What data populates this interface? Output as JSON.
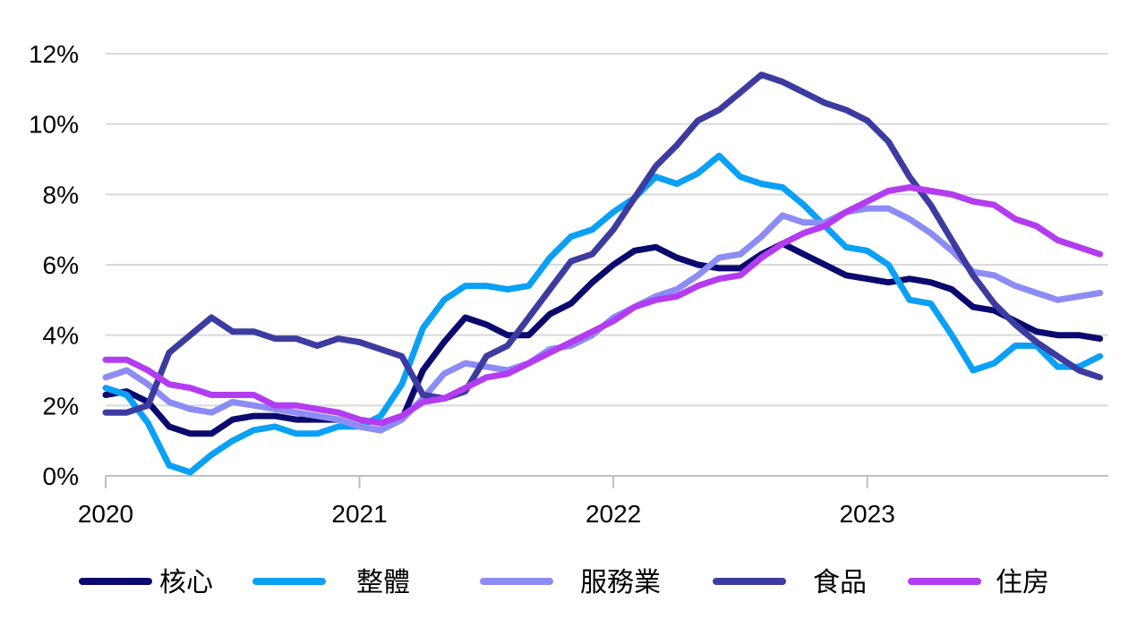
{
  "chart_data": {
    "type": "line",
    "title": "",
    "xlabel": "",
    "ylabel": "",
    "xlim": [
      2020.0,
      2023.95
    ],
    "ylim": [
      0,
      12
    ],
    "grid": true,
    "y_ticks": [
      0,
      2,
      4,
      6,
      8,
      10,
      12
    ],
    "y_tick_labels": [
      "0%",
      "2%",
      "4%",
      "6%",
      "8%",
      "10%",
      "12%"
    ],
    "x_ticks": [
      2020,
      2021,
      2022,
      2023
    ],
    "x_tick_labels": [
      "2020",
      "2021",
      "2022",
      "2023"
    ],
    "legend_position": "bottom",
    "x": [
      2020.0,
      2020.0833,
      2020.1667,
      2020.25,
      2020.3333,
      2020.4167,
      2020.5,
      2020.5833,
      2020.6667,
      2020.75,
      2020.8333,
      2020.9167,
      2021.0,
      2021.0833,
      2021.1667,
      2021.25,
      2021.3333,
      2021.4167,
      2021.5,
      2021.5833,
      2021.6667,
      2021.75,
      2021.8333,
      2021.9167,
      2022.0,
      2022.0833,
      2022.1667,
      2022.25,
      2022.3333,
      2022.4167,
      2022.5,
      2022.5833,
      2022.6667,
      2022.75,
      2022.8333,
      2022.9167,
      2023.0,
      2023.0833,
      2023.1667,
      2023.25,
      2023.3333,
      2023.4167,
      2023.5,
      2023.5833,
      2023.6667,
      2023.75,
      2023.8333,
      2023.9167
    ],
    "series": [
      {
        "name": "核心",
        "color": "#0a0a6e",
        "values": [
          2.3,
          2.4,
          2.1,
          1.4,
          1.2,
          1.2,
          1.6,
          1.7,
          1.7,
          1.6,
          1.6,
          1.6,
          1.4,
          1.3,
          1.6,
          3.0,
          3.8,
          4.5,
          4.3,
          4.0,
          4.0,
          4.6,
          4.9,
          5.5,
          6.0,
          6.4,
          6.5,
          6.2,
          6.0,
          5.9,
          5.9,
          6.3,
          6.6,
          6.3,
          6.0,
          5.7,
          5.6,
          5.5,
          5.6,
          5.5,
          5.3,
          4.8,
          4.7,
          4.4,
          4.1,
          4.0,
          4.0,
          3.9
        ]
      },
      {
        "name": "整體",
        "color": "#0aa0f5",
        "values": [
          2.5,
          2.3,
          1.5,
          0.3,
          0.1,
          0.6,
          1.0,
          1.3,
          1.4,
          1.2,
          1.2,
          1.4,
          1.4,
          1.7,
          2.6,
          4.2,
          5.0,
          5.4,
          5.4,
          5.3,
          5.4,
          6.2,
          6.8,
          7.0,
          7.5,
          7.9,
          8.5,
          8.3,
          8.6,
          9.1,
          8.5,
          8.3,
          8.2,
          7.7,
          7.1,
          6.5,
          6.4,
          6.0,
          5.0,
          4.9,
          4.0,
          3.0,
          3.2,
          3.7,
          3.7,
          3.1,
          3.1,
          3.4
        ]
      },
      {
        "name": "服務業",
        "color": "#8c8cf5",
        "values": [
          2.8,
          3.0,
          2.6,
          2.1,
          1.9,
          1.8,
          2.1,
          2.0,
          1.9,
          1.8,
          1.7,
          1.6,
          1.4,
          1.3,
          1.6,
          2.2,
          2.9,
          3.2,
          3.1,
          3.0,
          3.2,
          3.6,
          3.7,
          4.0,
          4.5,
          4.8,
          5.1,
          5.3,
          5.7,
          6.2,
          6.3,
          6.8,
          7.4,
          7.2,
          7.2,
          7.5,
          7.6,
          7.6,
          7.3,
          6.9,
          6.4,
          5.8,
          5.7,
          5.4,
          5.2,
          5.0,
          5.1,
          5.2
        ]
      },
      {
        "name": "食品",
        "color": "#3c3ca0",
        "values": [
          1.8,
          1.8,
          2.0,
          3.5,
          4.0,
          4.5,
          4.1,
          4.1,
          3.9,
          3.9,
          3.7,
          3.9,
          3.8,
          3.6,
          3.4,
          2.3,
          2.2,
          2.4,
          3.4,
          3.7,
          4.5,
          5.3,
          6.1,
          6.3,
          7.0,
          7.9,
          8.8,
          9.4,
          10.1,
          10.4,
          10.9,
          11.4,
          11.2,
          10.9,
          10.6,
          10.4,
          10.1,
          9.5,
          8.5,
          7.7,
          6.7,
          5.7,
          4.9,
          4.3,
          3.8,
          3.4,
          3.0,
          2.8
        ]
      },
      {
        "name": "住房",
        "color": "#b43cf0",
        "values": [
          3.3,
          3.3,
          3.0,
          2.6,
          2.5,
          2.3,
          2.3,
          2.3,
          2.0,
          2.0,
          1.9,
          1.8,
          1.6,
          1.5,
          1.7,
          2.1,
          2.2,
          2.5,
          2.8,
          2.9,
          3.2,
          3.5,
          3.8,
          4.1,
          4.4,
          4.8,
          5.0,
          5.1,
          5.4,
          5.6,
          5.7,
          6.2,
          6.6,
          6.9,
          7.1,
          7.5,
          7.8,
          8.1,
          8.2,
          8.1,
          8.0,
          7.8,
          7.7,
          7.3,
          7.1,
          6.7,
          6.5,
          6.3
        ]
      }
    ]
  },
  "legend": {
    "items": [
      {
        "label": "核心",
        "color": "#0a0a6e"
      },
      {
        "label": "整體",
        "color": "#0aa0f5"
      },
      {
        "label": "服務業",
        "color": "#8c8cf5"
      },
      {
        "label": "食品",
        "color": "#3c3ca0"
      },
      {
        "label": "住房",
        "color": "#b43cf0"
      }
    ]
  }
}
